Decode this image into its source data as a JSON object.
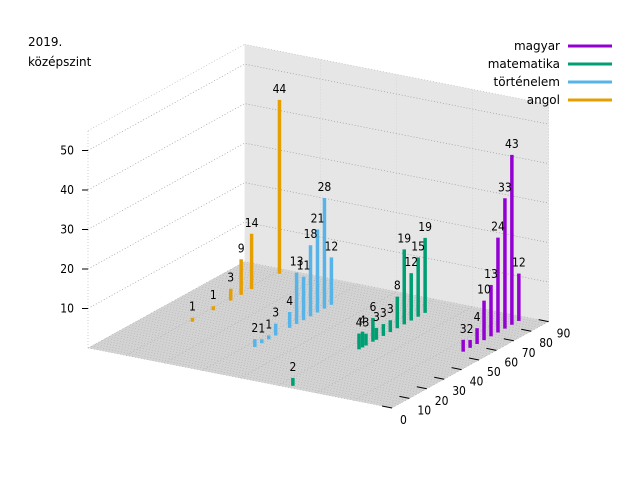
{
  "chart_data": {
    "type": "bar",
    "title_lines": [
      "2019.",
      "középszint"
    ],
    "xlabel": "",
    "ylabel": "",
    "zlim": [
      0,
      50
    ],
    "z_ticks": [
      10,
      20,
      30,
      40,
      50
    ],
    "x_ticks": [
      0,
      10,
      20,
      30,
      40,
      50,
      60,
      70,
      80,
      90
    ],
    "xlim": [
      0,
      90
    ],
    "grid": true,
    "legend_position": "top-right",
    "series": [
      {
        "name": "magyar",
        "color": "#9400d3",
        "points": [
          {
            "x": 54,
            "y": 3
          },
          {
            "x": 58,
            "y": 2
          },
          {
            "x": 62,
            "y": 4
          },
          {
            "x": 66,
            "y": 10
          },
          {
            "x": 70,
            "y": 13
          },
          {
            "x": 74,
            "y": 24
          },
          {
            "x": 78,
            "y": 33
          },
          {
            "x": 82,
            "y": 43
          },
          {
            "x": 86,
            "y": 12
          }
        ]
      },
      {
        "name": "matematika",
        "color": "#009e73",
        "points": [
          {
            "x": 2,
            "y": 2
          },
          {
            "x": 40,
            "y": 4
          },
          {
            "x": 42,
            "y": 4
          },
          {
            "x": 44,
            "y": 3
          },
          {
            "x": 48,
            "y": 6
          },
          {
            "x": 50,
            "y": 3
          },
          {
            "x": 54,
            "y": 3
          },
          {
            "x": 58,
            "y": 3
          },
          {
            "x": 62,
            "y": 8
          },
          {
            "x": 66,
            "y": 19
          },
          {
            "x": 70,
            "y": 12
          },
          {
            "x": 74,
            "y": 15
          },
          {
            "x": 78,
            "y": 19
          }
        ]
      },
      {
        "name": "történelem",
        "color": "#56b4e9",
        "points": [
          {
            "x": 26,
            "y": 2
          },
          {
            "x": 30,
            "y": 1
          },
          {
            "x": 34,
            "y": 1
          },
          {
            "x": 38,
            "y": 3
          },
          {
            "x": 46,
            "y": 4
          },
          {
            "x": 50,
            "y": 13
          },
          {
            "x": 54,
            "y": 11
          },
          {
            "x": 58,
            "y": 18
          },
          {
            "x": 62,
            "y": 21
          },
          {
            "x": 66,
            "y": 28
          },
          {
            "x": 70,
            "y": 12
          }
        ]
      },
      {
        "name": "angol",
        "color": "#e69f00",
        "points": [
          {
            "x": 36,
            "y": 1
          },
          {
            "x": 48,
            "y": 1
          },
          {
            "x": 58,
            "y": 3
          },
          {
            "x": 64,
            "y": 9
          },
          {
            "x": 70,
            "y": 14
          },
          {
            "x": 86,
            "y": 44
          }
        ]
      }
    ]
  }
}
